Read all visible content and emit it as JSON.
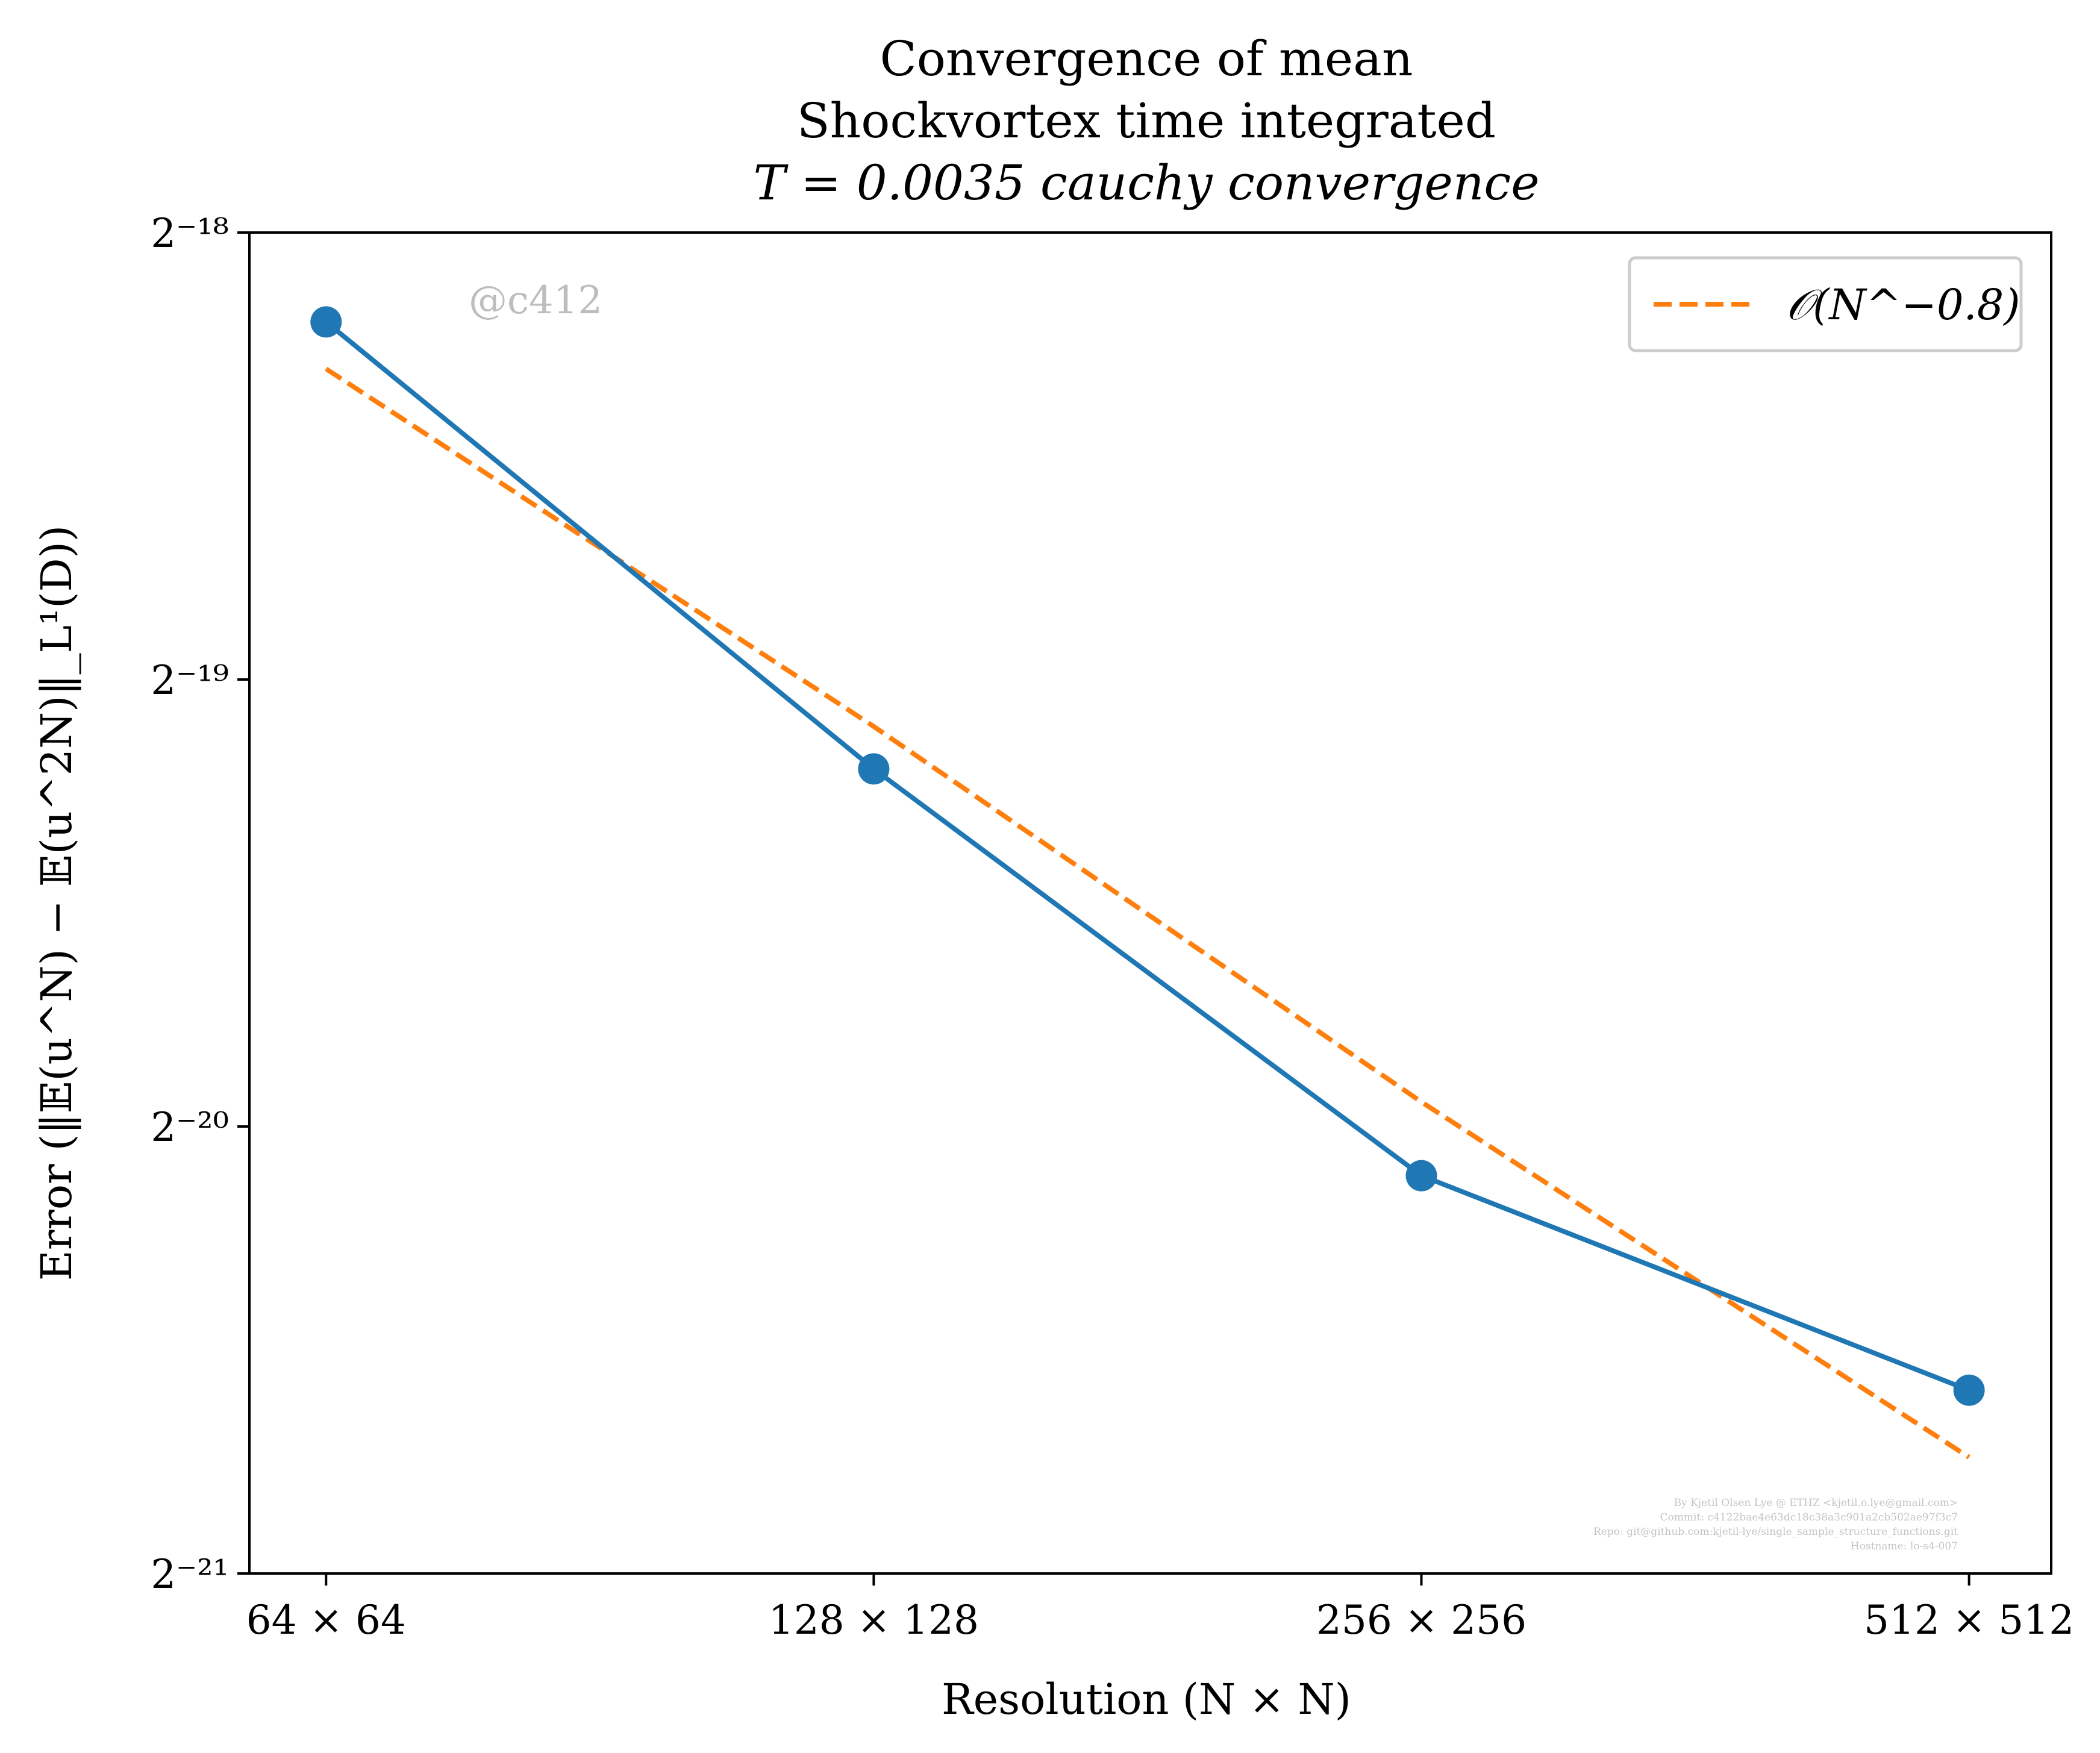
{
  "chart_data": {
    "type": "line",
    "title_lines": [
      "Convergence of mean",
      "Shockvortex time integrated",
      "T = 0.0035 cauchy convergence"
    ],
    "xlabel": "Resolution (N × N)",
    "ylabel": "Error (‖𝔼(u^N) − 𝔼(u^2N)‖_L¹(D))",
    "x_scale": "log2",
    "y_scale": "log2",
    "x": [
      64,
      128,
      256,
      512
    ],
    "x_tick_labels": [
      "64 × 64",
      "128 × 128",
      "256 × 256",
      "512 × 512"
    ],
    "y_ticks_log2": [
      -18,
      -19,
      -20,
      -21
    ],
    "y_tick_labels": [
      "2⁻¹⁸",
      "2⁻¹⁹",
      "2⁻²⁰",
      "2⁻²¹"
    ],
    "xlim_log2": [
      5.86,
      9.15
    ],
    "ylim_log2": [
      -21,
      -18
    ],
    "series": [
      {
        "role": "data",
        "color": "#1f77b4",
        "style": "solid-with-markers",
        "log2_values": [
          -18.2,
          -19.2,
          -20.11,
          -20.59
        ]
      },
      {
        "role": "reference",
        "name": "𝒪(N^−0.8)",
        "color": "#ff7f0e",
        "style": "dashed",
        "log2_values": [
          -18.305,
          -19.105,
          -19.945,
          -20.74
        ]
      }
    ],
    "legend": {
      "position": "top-right",
      "entries": [
        "𝒪(N^−0.8)"
      ]
    },
    "grid": false,
    "watermark": "@c412",
    "credits": [
      "By Kjetil Olsen Lye @ ETHZ <kjetil.o.lye@gmail.com>",
      "Commit: c4122bae4e63dc18c38a3c901a2cb502ae97f3c7",
      "Repo: git@github.com:kjetil-lye/single_sample_structure_functions.git",
      "Hostname: lo-s4-007"
    ]
  }
}
